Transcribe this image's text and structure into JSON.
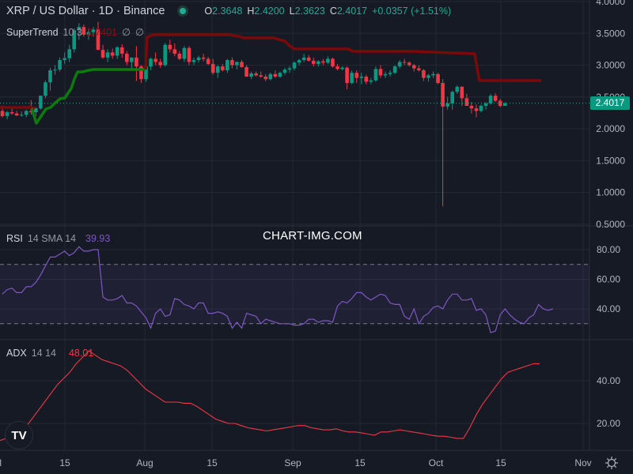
{
  "header": {
    "symbol_title": "XRP / US Dollar · 1D · Binance",
    "market_status": "open",
    "ohlc": {
      "open_label": "O",
      "open": "2.3648",
      "high_label": "H",
      "high": "2.4200",
      "low_label": "L",
      "low": "2.3623",
      "close_label": "C",
      "close": "2.4017",
      "change": "+0.0357 (+1.51%)"
    }
  },
  "indicators": {
    "supertrend": {
      "name": "SuperTrend",
      "params": "10 3",
      "value": "2.7401",
      "extra1": "∅",
      "extra2": "∅"
    },
    "rsi": {
      "name": "RSI",
      "params": "14 SMA 14",
      "value": "39.93"
    },
    "adx": {
      "name": "ADX",
      "params": "14 14",
      "value": "48.01"
    }
  },
  "price_axis": {
    "labels": [
      "4.0000",
      "3.5000",
      "3.0000",
      "2.5000",
      "2.0000",
      "1.5000",
      "1.0000",
      "0.5000"
    ],
    "current_price": "2.4017"
  },
  "rsi_axis": {
    "labels": [
      "80.00",
      "60.00",
      "40.00"
    ]
  },
  "adx_axis": {
    "labels": [
      "40.00",
      "20.00"
    ]
  },
  "time_axis": {
    "labels": [
      "Jul",
      "15",
      "Aug",
      "15",
      "Sep",
      "15",
      "Oct",
      "15",
      "Nov"
    ]
  },
  "watermark": "CHART-IMG.COM",
  "logo": "TV",
  "colors": {
    "up": "#089981",
    "down": "#f23645",
    "bg": "#161a25",
    "grid": "#242833",
    "supertrend_up": "#0c7a0c",
    "supertrend_down": "#7a0a0a",
    "rsi": "#7e57c2",
    "adx": "#f23645"
  },
  "chart_data": [
    {
      "type": "candlestick",
      "title": "XRP / US Dollar · 1D · Binance",
      "ylim": [
        0.5,
        4.0
      ],
      "x_labels": [
        "Jul",
        "15",
        "Aug",
        "15",
        "Sep",
        "15",
        "Oct",
        "15",
        "Nov"
      ],
      "candles": [
        [
          2.28,
          2.36,
          2.18,
          2.2
        ],
        [
          2.2,
          2.28,
          2.15,
          2.26
        ],
        [
          2.26,
          2.35,
          2.22,
          2.24
        ],
        [
          2.24,
          2.28,
          2.2,
          2.21
        ],
        [
          2.21,
          2.27,
          2.19,
          2.22
        ],
        [
          2.22,
          2.3,
          2.18,
          2.28
        ],
        [
          2.28,
          2.45,
          2.22,
          2.26
        ],
        [
          2.26,
          2.34,
          2.2,
          2.32
        ],
        [
          2.32,
          2.52,
          2.3,
          2.52
        ],
        [
          2.52,
          2.76,
          2.48,
          2.73
        ],
        [
          2.73,
          2.96,
          2.6,
          2.92
        ],
        [
          2.92,
          3.0,
          2.85,
          2.93
        ],
        [
          2.93,
          3.12,
          2.9,
          3.08
        ],
        [
          3.08,
          3.2,
          3.02,
          3.11
        ],
        [
          3.11,
          3.32,
          3.05,
          3.25
        ],
        [
          3.25,
          3.58,
          3.2,
          3.55
        ],
        [
          3.55,
          3.66,
          3.4,
          3.6
        ],
        [
          3.6,
          3.64,
          3.45,
          3.48
        ],
        [
          3.48,
          3.58,
          3.4,
          3.52
        ],
        [
          3.52,
          3.6,
          3.45,
          3.56
        ],
        [
          3.56,
          3.68,
          3.3,
          3.24
        ],
        [
          3.24,
          3.32,
          3.1,
          3.12
        ],
        [
          3.12,
          3.25,
          3.05,
          3.2
        ],
        [
          3.2,
          3.26,
          3.1,
          3.15
        ],
        [
          3.15,
          3.3,
          3.1,
          3.28
        ],
        [
          3.28,
          3.33,
          3.12,
          3.18
        ],
        [
          3.18,
          3.22,
          3.0,
          3.05
        ],
        [
          3.05,
          3.12,
          2.92,
          3.12
        ],
        [
          3.12,
          3.3,
          2.75,
          2.98
        ],
        [
          2.98,
          3.0,
          2.72,
          2.78
        ],
        [
          2.78,
          3.0,
          2.74,
          2.98
        ],
        [
          2.98,
          3.12,
          2.92,
          3.1
        ],
        [
          3.1,
          3.2,
          3.0,
          3.05
        ],
        [
          3.05,
          3.1,
          2.96,
          3.0
        ],
        [
          3.0,
          3.35,
          2.98,
          3.32
        ],
        [
          3.32,
          3.4,
          3.2,
          3.25
        ],
        [
          3.25,
          3.34,
          3.14,
          3.18
        ],
        [
          3.18,
          3.22,
          3.08,
          3.1
        ],
        [
          3.1,
          3.3,
          3.05,
          3.27
        ],
        [
          3.27,
          3.3,
          3.0,
          3.05
        ],
        [
          3.05,
          3.12,
          3.0,
          3.08
        ],
        [
          3.08,
          3.15,
          3.04,
          3.12
        ],
        [
          3.12,
          3.18,
          3.06,
          3.1
        ],
        [
          3.1,
          3.13,
          3.0,
          3.02
        ],
        [
          3.02,
          3.1,
          2.85,
          2.88
        ],
        [
          2.88,
          3.0,
          2.8,
          2.98
        ],
        [
          2.98,
          3.02,
          2.9,
          2.92
        ],
        [
          2.92,
          3.1,
          2.88,
          3.08
        ],
        [
          3.08,
          3.12,
          2.95,
          3.0
        ],
        [
          3.0,
          3.06,
          2.93,
          3.05
        ],
        [
          3.05,
          3.08,
          2.96,
          2.97
        ],
        [
          2.97,
          3.0,
          2.82,
          2.82
        ],
        [
          2.82,
          2.9,
          2.78,
          2.87
        ],
        [
          2.87,
          2.9,
          2.82,
          2.84
        ],
        [
          2.84,
          2.9,
          2.8,
          2.82
        ],
        [
          2.82,
          2.86,
          2.75,
          2.78
        ],
        [
          2.78,
          2.88,
          2.76,
          2.86
        ],
        [
          2.86,
          2.92,
          2.8,
          2.82
        ],
        [
          2.82,
          2.9,
          2.8,
          2.88
        ],
        [
          2.88,
          2.96,
          2.85,
          2.93
        ],
        [
          2.93,
          2.98,
          2.88,
          2.95
        ],
        [
          2.95,
          3.06,
          2.92,
          3.04
        ],
        [
          3.04,
          3.1,
          3.0,
          3.08
        ],
        [
          3.08,
          3.18,
          3.05,
          3.12
        ],
        [
          3.12,
          3.16,
          3.06,
          3.07
        ],
        [
          3.07,
          3.12,
          2.98,
          3.02
        ],
        [
          3.02,
          3.08,
          2.98,
          3.06
        ],
        [
          3.06,
          3.1,
          3.0,
          3.04
        ],
        [
          3.04,
          3.14,
          3.02,
          3.1
        ],
        [
          3.1,
          3.12,
          2.96,
          2.98
        ],
        [
          2.98,
          3.02,
          2.92,
          2.94
        ],
        [
          2.94,
          2.98,
          2.92,
          2.96
        ],
        [
          2.96,
          2.98,
          2.62,
          2.72
        ],
        [
          2.72,
          2.92,
          2.7,
          2.88
        ],
        [
          2.88,
          2.92,
          2.72,
          2.8
        ],
        [
          2.8,
          2.88,
          2.7,
          2.82
        ],
        [
          2.82,
          2.85,
          2.7,
          2.74
        ],
        [
          2.74,
          2.8,
          2.7,
          2.76
        ],
        [
          2.76,
          2.98,
          2.74,
          2.94
        ],
        [
          2.94,
          3.0,
          2.8,
          2.84
        ],
        [
          2.84,
          2.9,
          2.8,
          2.86
        ],
        [
          2.86,
          2.92,
          2.82,
          2.88
        ],
        [
          2.88,
          3.0,
          2.86,
          2.98
        ],
        [
          2.98,
          3.08,
          2.95,
          3.05
        ],
        [
          3.05,
          3.1,
          3.0,
          3.04
        ],
        [
          3.04,
          3.06,
          2.98,
          3.0
        ],
        [
          3.0,
          3.02,
          2.9,
          2.95
        ],
        [
          2.95,
          3.0,
          2.9,
          2.92
        ],
        [
          2.92,
          2.94,
          2.75,
          2.8
        ],
        [
          2.8,
          2.86,
          2.74,
          2.84
        ],
        [
          2.84,
          2.9,
          2.8,
          2.86
        ],
        [
          2.86,
          2.88,
          2.7,
          2.72
        ],
        [
          2.72,
          2.78,
          0.78,
          2.35
        ],
        [
          2.35,
          2.5,
          2.3,
          2.4
        ],
        [
          2.4,
          2.6,
          2.3,
          2.58
        ],
        [
          2.58,
          2.68,
          2.55,
          2.66
        ],
        [
          2.66,
          2.67,
          2.36,
          2.48
        ],
        [
          2.48,
          2.55,
          2.36,
          2.36
        ],
        [
          2.36,
          2.42,
          2.24,
          2.32
        ],
        [
          2.32,
          2.38,
          2.18,
          2.28
        ],
        [
          2.28,
          2.38,
          2.26,
          2.36
        ],
        [
          2.36,
          2.42,
          2.3,
          2.4
        ],
        [
          2.4,
          2.55,
          2.38,
          2.52
        ],
        [
          2.52,
          2.56,
          2.42,
          2.44
        ],
        [
          2.44,
          2.47,
          2.34,
          2.36
        ],
        [
          2.36,
          2.42,
          2.36,
          2.4
        ]
      ]
    },
    {
      "type": "line",
      "title": "RSI 14 SMA 14",
      "ylim": [
        20,
        90
      ],
      "bands": [
        30,
        70
      ],
      "values": [
        50,
        53,
        54,
        51,
        51,
        55,
        55,
        58,
        63,
        69,
        75,
        75,
        77,
        79,
        76,
        78,
        82,
        79,
        79,
        80,
        80,
        48,
        46,
        46,
        47,
        49,
        44,
        44,
        42,
        38,
        34,
        27,
        37,
        40,
        35,
        36,
        47,
        46,
        43,
        42,
        40,
        44,
        44,
        37,
        37,
        38,
        37,
        35,
        27,
        31,
        27,
        37,
        36,
        35,
        30,
        33,
        32,
        31,
        30,
        30,
        30,
        29,
        29,
        30,
        33,
        33,
        31,
        32,
        32,
        31,
        42,
        45,
        44,
        47,
        51,
        51,
        48,
        46,
        48,
        50,
        49,
        44,
        43,
        43,
        35,
        33,
        40,
        30,
        35,
        37,
        41,
        42,
        40,
        46,
        50,
        50,
        46,
        46,
        47,
        39,
        40,
        36,
        24,
        25,
        36,
        40,
        36,
        33,
        31,
        30,
        34,
        36,
        43,
        40,
        39,
        40
      ],
      "current": 39.93
    },
    {
      "type": "line",
      "title": "ADX 14 14",
      "ylim": [
        10,
        55
      ],
      "values": [
        12,
        13,
        14,
        15,
        18,
        22,
        26,
        30,
        34,
        38,
        41,
        44,
        48,
        51,
        54,
        52,
        50,
        49,
        48,
        47,
        45,
        42,
        39,
        36,
        34,
        32,
        30,
        30,
        30,
        29.5,
        29.5,
        28,
        26,
        24,
        22,
        21,
        20,
        20,
        19,
        18,
        17.5,
        17,
        16.5,
        17,
        17.5,
        18,
        18.5,
        19,
        19,
        18,
        17.5,
        17,
        17,
        17.5,
        16.5,
        16,
        16,
        15.5,
        15,
        14.5,
        16,
        16,
        16.5,
        17,
        16.5,
        16,
        15.5,
        15,
        14.5,
        14,
        14,
        13.5,
        13,
        13,
        18,
        24,
        29,
        33,
        37,
        41,
        44,
        45,
        46,
        47,
        48,
        48.01
      ],
      "current": 48.01
    }
  ]
}
